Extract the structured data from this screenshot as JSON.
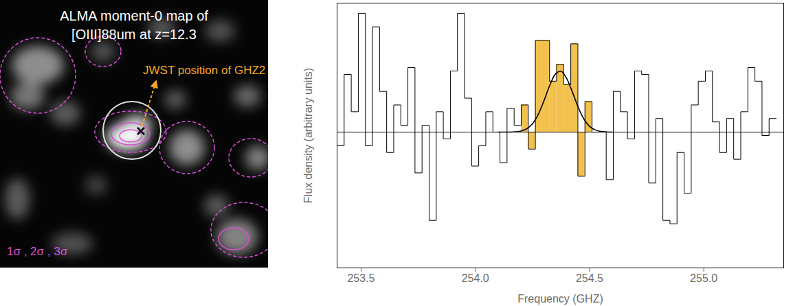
{
  "map_panel": {
    "title_lines": [
      "ALMA moment-0 map of",
      "[OIII]88um at z=12.3"
    ],
    "annotation": "JWST position of GHZ2",
    "contour_legend": "1σ , 2σ , 3σ"
  },
  "chart_data": {
    "type": "step",
    "xlabel": "Frequency (GHZ)",
    "ylabel": "Flux density (arbitrary units)",
    "xlim": [
      253.395,
      255.35
    ],
    "ylim": [
      -2.0,
      1.9
    ],
    "xticks": [
      {
        "value": 253.5,
        "label": "253.5"
      },
      {
        "value": 254,
        "label": "254.0"
      },
      {
        "value": 254.5,
        "label": "254.5"
      },
      {
        "value": 255,
        "label": "255.0"
      }
    ],
    "yticks": [],
    "tick_labels": "x",
    "color": "#000000",
    "bins": [
      253.395,
      253.426,
      253.457,
      253.488,
      253.519,
      253.55,
      253.581,
      253.612,
      253.643,
      253.674,
      253.705,
      253.736,
      253.767,
      253.798,
      253.829,
      253.86,
      253.891,
      253.922,
      253.953,
      253.984,
      254.015,
      254.046,
      254.077,
      254.108,
      254.139,
      254.17,
      254.201,
      254.232,
      254.263,
      254.294,
      254.325,
      254.356,
      254.387,
      254.418,
      254.449,
      254.48,
      254.511,
      254.542,
      254.573,
      254.604,
      254.635,
      254.666,
      254.697,
      254.728,
      254.759,
      254.79,
      254.821,
      254.852,
      254.883,
      254.914,
      254.945,
      254.976,
      255.007,
      255.038,
      255.069,
      255.1,
      255.131,
      255.162,
      255.193,
      255.224,
      255.255,
      255.286,
      255.317
    ],
    "values": [
      -0.2,
      0.85,
      0.3,
      1.75,
      -0.2,
      1.55,
      0.6,
      -0.3,
      0.4,
      0.1,
      0.95,
      -0.6,
      0.1,
      -1.3,
      0.3,
      -0.1,
      0.9,
      1.75,
      0.5,
      -0.5,
      -0.2,
      0.3,
      0.0,
      -0.45,
      0.35,
      0.1,
      0.4,
      -0.25,
      1.35,
      1.35,
      0.75,
      1.0,
      0.7,
      1.3,
      -0.65,
      0.45,
      0.0,
      0.0,
      -0.7,
      0.6,
      0.3,
      -0.1,
      0.9,
      0.85,
      -0.75,
      0.2,
      -1.3,
      -1.35,
      -0.3,
      -0.9,
      0.4,
      0.75,
      0.9,
      0.15,
      -0.3,
      0.2,
      -0.4,
      0.3,
      0.95,
      0.75,
      -0.05,
      0.2
    ],
    "highlight": {
      "from": 254.2,
      "to": 254.55,
      "color": "#f2c14e"
    },
    "fit": {
      "color": "#000000",
      "x": [
        254.1,
        254.125,
        254.15,
        254.175,
        254.2,
        254.225,
        254.25,
        254.275,
        254.3,
        254.325,
        254.35,
        254.375,
        254.4,
        254.425,
        254.45,
        254.475,
        254.5,
        254.525,
        254.55,
        254.575,
        254.6
      ],
      "values": [
        0.0,
        0.0,
        0.001,
        0.005,
        0.016,
        0.049,
        0.122,
        0.257,
        0.456,
        0.68,
        0.85,
        0.897,
        0.79,
        0.59,
        0.37,
        0.195,
        0.086,
        0.032,
        0.01,
        0.003,
        0.0
      ]
    }
  }
}
